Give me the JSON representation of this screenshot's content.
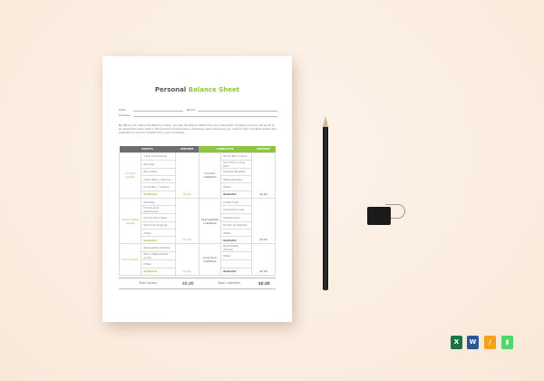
{
  "document": {
    "title_part1": "Personal",
    "title_part2": "Balance Sheet",
    "fields": {
      "date": "Date:",
      "name": "Name:",
      "address": "Address:"
    },
    "intro": "By filling out a Personal Balance sheet, you will be able to determine your net worth. Finding out your net worth is an important early step in the process of becoming a business owner because you need to find out what assets are available to you for investment in your business.",
    "headers": [
      "ASSETS",
      "AMOUNT",
      "LIABILITIES",
      "AMOUNT"
    ],
    "sections": [
      {
        "asset_cat": "Current Assets",
        "assets": [
          "Cash & Checking",
          "Savings",
          "Securities",
          "Cash Value / Life Ins",
          "Accts Rec / Collect"
        ],
        "asset_subtotal": "Subtotal",
        "asset_amount": "$0.00",
        "liab_cat": "Current Liabilities",
        "liabilities": [
          "Short Term Loans",
          "Curr Port / Long term",
          "Interest Payable",
          "Taxes Payable",
          "Other"
        ],
        "liab_subtotal": "Subtotal",
        "liab_amount": "$0.00"
      },
      {
        "asset_cat": "Intermediate Assets",
        "assets": [
          "Vehicles",
          "Furniture & Appliances",
          "CD's & Securities",
          "Personal Property",
          "Other"
        ],
        "asset_subtotal": "Subtotal",
        "asset_amount": "$0.00",
        "liab_cat": "Intermediate Liabilities",
        "liabilities": [
          "Credit Card",
          "Consumer Loan",
          "Vehicle Loan",
          "Doctor & Hospital",
          "Other"
        ],
        "liab_subtotal": "Subtotal",
        "liab_amount": "$0.00"
      },
      {
        "asset_cat": "Fixed Assets",
        "assets": [
          "Real estate (Home)",
          "IRA or Retirement Accts",
          "Other"
        ],
        "asset_subtotal": "Subtotal",
        "asset_amount": "$0.00",
        "liab_cat": "Long Term Liabilities",
        "liabilities": [
          "Real Estate (Home)",
          "Other",
          ""
        ],
        "liab_subtotal": "Subtotal",
        "liab_amount": "$0.00"
      }
    ],
    "totals": {
      "assets_label": "Total Assets",
      "assets_value": "$0.00",
      "liab_label": "Total Liabilities",
      "liab_value": "$0.00"
    }
  },
  "app_icons": [
    "excel-icon",
    "word-icon",
    "pages-icon",
    "numbers-icon"
  ],
  "colors": {
    "accent": "#8cc63f",
    "header_dark": "#6d6e70",
    "background": "#f9e8d8"
  }
}
